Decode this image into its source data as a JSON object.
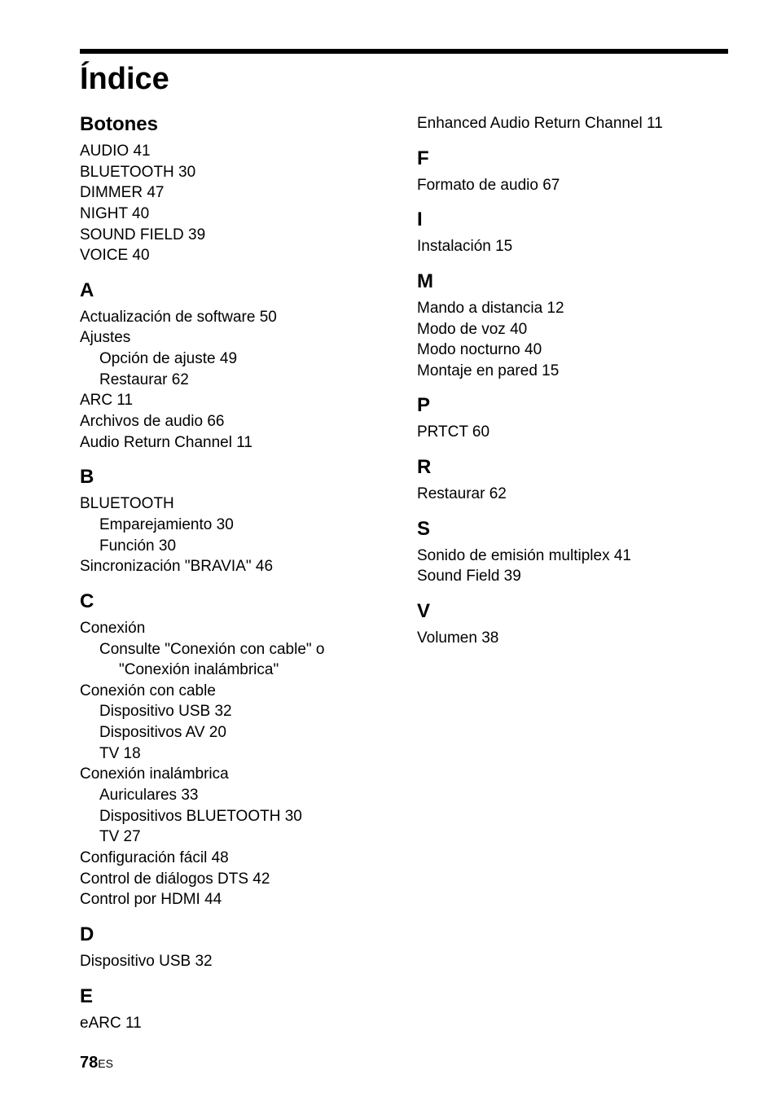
{
  "title": "Índice",
  "page_number": "78",
  "lang_code": "ES",
  "colors": {
    "text": "#000000",
    "bg": "#ffffff",
    "rule": "#000000"
  },
  "typography": {
    "title_fontsize_pt": 28,
    "section_head_fontsize_pt": 18,
    "body_fontsize_pt": 14,
    "footer_page_fontsize_pt": 15,
    "footer_lang_fontsize_pt": 10,
    "font_family": "Arial"
  },
  "left": [
    {
      "type": "head",
      "text": "Botones"
    },
    {
      "type": "entry",
      "text": "AUDIO 41"
    },
    {
      "type": "entry",
      "text": "BLUETOOTH 30"
    },
    {
      "type": "entry",
      "text": "DIMMER 47"
    },
    {
      "type": "entry",
      "text": "NIGHT 40"
    },
    {
      "type": "entry",
      "text": "SOUND FIELD 39"
    },
    {
      "type": "entry",
      "text": "VOICE 40"
    },
    {
      "type": "head",
      "text": "A"
    },
    {
      "type": "entry",
      "text": "Actualización de software 50"
    },
    {
      "type": "entry",
      "text": "Ajustes"
    },
    {
      "type": "sub",
      "text": "Opción de ajuste 49"
    },
    {
      "type": "sub",
      "text": "Restaurar 62"
    },
    {
      "type": "entry",
      "text": "ARC 11"
    },
    {
      "type": "entry",
      "text": "Archivos de audio 66"
    },
    {
      "type": "entry",
      "text": "Audio Return Channel 11"
    },
    {
      "type": "head",
      "text": "B"
    },
    {
      "type": "entry",
      "text": "BLUETOOTH"
    },
    {
      "type": "sub",
      "text": "Emparejamiento 30"
    },
    {
      "type": "sub",
      "text": "Función 30"
    },
    {
      "type": "entry",
      "text": "Sincronización \"BRAVIA\" 46"
    },
    {
      "type": "head",
      "text": "C"
    },
    {
      "type": "entry",
      "text": "Conexión"
    },
    {
      "type": "hang",
      "text": "Consulte \"Conexión con cable\" o \"Conexión inalámbrica\""
    },
    {
      "type": "entry",
      "text": "Conexión con cable"
    },
    {
      "type": "sub",
      "text": "Dispositivo USB 32"
    },
    {
      "type": "sub",
      "text": "Dispositivos AV 20"
    },
    {
      "type": "sub",
      "text": "TV 18"
    },
    {
      "type": "entry",
      "text": "Conexión inalámbrica"
    },
    {
      "type": "sub",
      "text": "Auriculares 33"
    },
    {
      "type": "sub",
      "text": "Dispositivos BLUETOOTH 30"
    },
    {
      "type": "sub",
      "text": "TV 27"
    },
    {
      "type": "entry",
      "text": "Configuración fácil 48"
    },
    {
      "type": "entry",
      "text": "Control de diálogos DTS 42"
    },
    {
      "type": "entry",
      "text": "Control por HDMI 44"
    },
    {
      "type": "head",
      "text": "D"
    },
    {
      "type": "entry",
      "text": "Dispositivo USB 32"
    },
    {
      "type": "head",
      "text": "E"
    },
    {
      "type": "entry",
      "text": "eARC 11"
    }
  ],
  "right": [
    {
      "type": "entry",
      "text": "Enhanced Audio Return Channel 11"
    },
    {
      "type": "head",
      "text": "F"
    },
    {
      "type": "entry",
      "text": "Formato de audio 67"
    },
    {
      "type": "head",
      "text": "I"
    },
    {
      "type": "entry",
      "text": "Instalación 15"
    },
    {
      "type": "head",
      "text": "M"
    },
    {
      "type": "entry",
      "text": "Mando a distancia 12"
    },
    {
      "type": "entry",
      "text": "Modo de voz 40"
    },
    {
      "type": "entry",
      "text": "Modo nocturno 40"
    },
    {
      "type": "entry",
      "text": "Montaje en pared 15"
    },
    {
      "type": "head",
      "text": "P"
    },
    {
      "type": "entry",
      "text": "PRTCT 60"
    },
    {
      "type": "head",
      "text": "R"
    },
    {
      "type": "entry",
      "text": "Restaurar 62"
    },
    {
      "type": "head",
      "text": "S"
    },
    {
      "type": "entry",
      "text": "Sonido de emisión multiplex 41"
    },
    {
      "type": "entry",
      "text": "Sound Field 39"
    },
    {
      "type": "head",
      "text": "V"
    },
    {
      "type": "entry",
      "text": "Volumen 38"
    }
  ]
}
